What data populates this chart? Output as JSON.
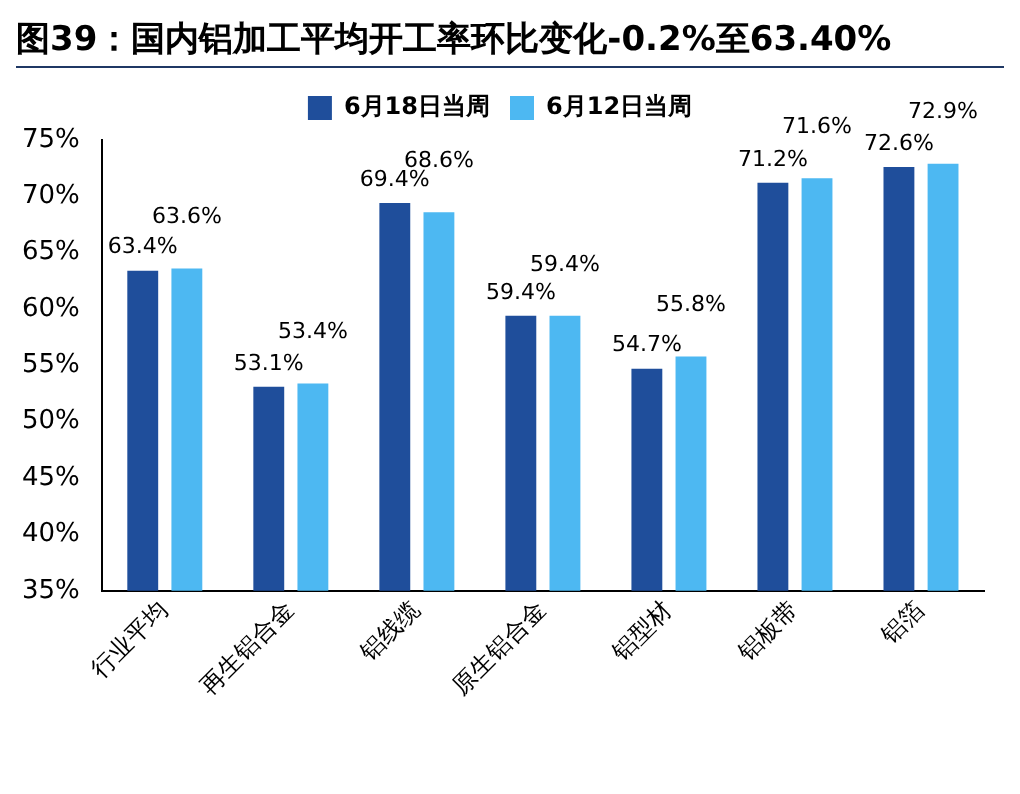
{
  "chart_data": {
    "type": "bar",
    "title": "图39：国内铝加工平均开工率环比变化-0.2%至63.40%",
    "categories": [
      "行业平均",
      "再生铝合金",
      "铝线缆",
      "原生铝合金",
      "铝型材",
      "铝板带",
      "铝箔"
    ],
    "series": [
      {
        "name": "6月18日当周",
        "color": "#1f4e9b",
        "values": [
          63.4,
          53.1,
          69.4,
          59.4,
          54.7,
          71.2,
          72.6
        ],
        "value_labels": [
          "63.4%",
          "53.1%",
          "69.4%",
          "59.4%",
          "54.7%",
          "71.2%",
          "72.6%"
        ]
      },
      {
        "name": "6月12日当周",
        "color": "#4db8f2",
        "values": [
          63.6,
          53.4,
          68.6,
          59.4,
          55.8,
          71.6,
          72.9
        ],
        "value_labels": [
          "63.6%",
          "53.4%",
          "68.6%",
          "59.4%",
          "55.8%",
          "71.6%",
          "72.9%"
        ]
      }
    ],
    "ylim": [
      35,
      75
    ],
    "yticks": [
      {
        "value": 35,
        "label": "35%"
      },
      {
        "value": 40,
        "label": "40%"
      },
      {
        "value": 45,
        "label": "45%"
      },
      {
        "value": 50,
        "label": "50%"
      },
      {
        "value": 55,
        "label": "55%"
      },
      {
        "value": 60,
        "label": "60%"
      },
      {
        "value": 65,
        "label": "65%"
      },
      {
        "value": 70,
        "label": "70%"
      },
      {
        "value": 75,
        "label": "75%"
      }
    ],
    "grid": false,
    "legend": "top"
  }
}
